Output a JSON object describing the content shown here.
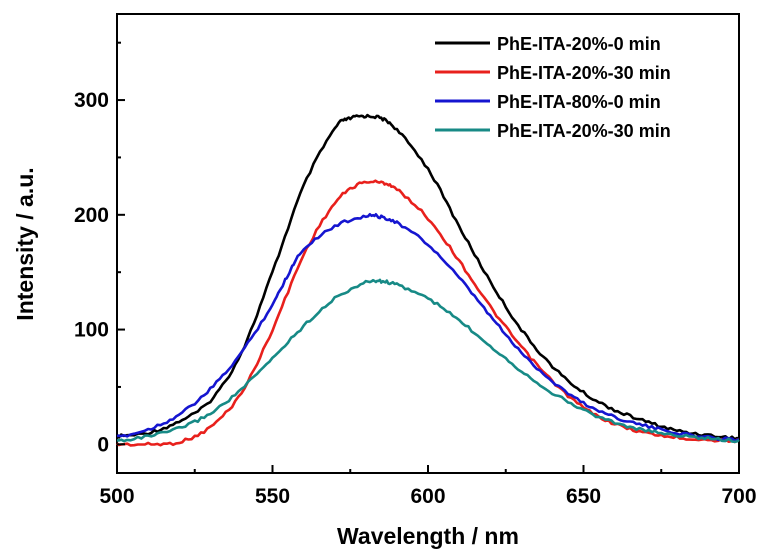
{
  "chart_data": {
    "type": "line",
    "title": "",
    "xlabel": "Wavelength / nm",
    "ylabel": "Intensity / a.u.",
    "xlim": [
      500,
      700
    ],
    "ylim": [
      -25,
      375
    ],
    "x_ticks": [
      500,
      550,
      600,
      650,
      700
    ],
    "y_ticks": [
      0,
      100,
      200,
      300
    ],
    "grid": false,
    "legend_position": "top-right",
    "series": [
      {
        "name": "PhE-ITA-20%-0 min",
        "color": "#000000",
        "points": [
          [
            500,
            7
          ],
          [
            510,
            10
          ],
          [
            520,
            20
          ],
          [
            530,
            38
          ],
          [
            540,
            80
          ],
          [
            550,
            150
          ],
          [
            560,
            225
          ],
          [
            570,
            275
          ],
          [
            575,
            284
          ],
          [
            580,
            286
          ],
          [
            585,
            284
          ],
          [
            590,
            274
          ],
          [
            600,
            240
          ],
          [
            610,
            190
          ],
          [
            620,
            142
          ],
          [
            630,
            100
          ],
          [
            640,
            68
          ],
          [
            650,
            45
          ],
          [
            660,
            30
          ],
          [
            670,
            20
          ],
          [
            680,
            12
          ],
          [
            690,
            8
          ],
          [
            700,
            5
          ]
        ]
      },
      {
        "name": "PhE-ITA-20%-30 min",
        "color": "#e8201c",
        "points": [
          [
            500,
            0
          ],
          [
            510,
            0
          ],
          [
            520,
            2
          ],
          [
            530,
            15
          ],
          [
            540,
            45
          ],
          [
            550,
            100
          ],
          [
            560,
            165
          ],
          [
            570,
            210
          ],
          [
            578,
            227
          ],
          [
            585,
            228
          ],
          [
            590,
            222
          ],
          [
            600,
            197
          ],
          [
            610,
            160
          ],
          [
            620,
            120
          ],
          [
            630,
            85
          ],
          [
            640,
            55
          ],
          [
            650,
            32
          ],
          [
            660,
            18
          ],
          [
            670,
            10
          ],
          [
            680,
            6
          ],
          [
            690,
            4
          ],
          [
            700,
            3
          ]
        ]
      },
      {
        "name": "PhE-ITA-80%-0 min",
        "color": "#1515d0",
        "points": [
          [
            500,
            6
          ],
          [
            510,
            13
          ],
          [
            520,
            26
          ],
          [
            530,
            48
          ],
          [
            540,
            80
          ],
          [
            550,
            122
          ],
          [
            555,
            148
          ],
          [
            560,
            170
          ],
          [
            570,
            190
          ],
          [
            580,
            199
          ],
          [
            585,
            198
          ],
          [
            590,
            193
          ],
          [
            600,
            174
          ],
          [
            610,
            145
          ],
          [
            620,
            112
          ],
          [
            630,
            80
          ],
          [
            640,
            55
          ],
          [
            650,
            36
          ],
          [
            660,
            24
          ],
          [
            670,
            16
          ],
          [
            680,
            10
          ],
          [
            690,
            6
          ],
          [
            700,
            4
          ]
        ]
      },
      {
        "name": "PhE-ITA-20%-30 min",
        "color": "#178a86",
        "points": [
          [
            500,
            3
          ],
          [
            510,
            7
          ],
          [
            520,
            14
          ],
          [
            530,
            27
          ],
          [
            540,
            48
          ],
          [
            550,
            75
          ],
          [
            560,
            103
          ],
          [
            570,
            127
          ],
          [
            580,
            141
          ],
          [
            585,
            142
          ],
          [
            590,
            139
          ],
          [
            600,
            127
          ],
          [
            610,
            108
          ],
          [
            620,
            86
          ],
          [
            630,
            64
          ],
          [
            640,
            45
          ],
          [
            650,
            30
          ],
          [
            660,
            19
          ],
          [
            670,
            12
          ],
          [
            680,
            8
          ],
          [
            690,
            5
          ],
          [
            700,
            3
          ]
        ]
      }
    ]
  }
}
